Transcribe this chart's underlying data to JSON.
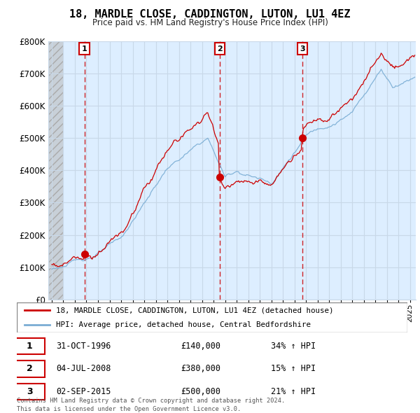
{
  "title": "18, MARDLE CLOSE, CADDINGTON, LUTON, LU1 4EZ",
  "subtitle": "Price paid vs. HM Land Registry's House Price Index (HPI)",
  "ylim": [
    0,
    800000
  ],
  "yticks": [
    0,
    100000,
    200000,
    300000,
    400000,
    500000,
    600000,
    700000,
    800000
  ],
  "ytick_labels": [
    "£0",
    "£100K",
    "£200K",
    "£300K",
    "£400K",
    "£500K",
    "£600K",
    "£700K",
    "£800K"
  ],
  "sale_dates": [
    1996.83,
    2008.54,
    2015.67
  ],
  "sale_prices": [
    140000,
    380000,
    500000
  ],
  "sale_labels": [
    "1",
    "2",
    "3"
  ],
  "sale_date_strs": [
    "31-OCT-1996",
    "04-JUL-2008",
    "02-SEP-2015"
  ],
  "sale_price_strs": [
    "£140,000",
    "£380,000",
    "£500,000"
  ],
  "sale_hpi_strs": [
    "34% ↑ HPI",
    "15% ↑ HPI",
    "21% ↑ HPI"
  ],
  "property_line_color": "#cc0000",
  "hpi_line_color": "#7aadd4",
  "legend_property_label": "18, MARDLE CLOSE, CADDINGTON, LUTON, LU1 4EZ (detached house)",
  "legend_hpi_label": "HPI: Average price, detached house, Central Bedfordshire",
  "footer": "Contains HM Land Registry data © Crown copyright and database right 2024.\nThis data is licensed under the Open Government Licence v3.0.",
  "grid_color": "#c8d8e8",
  "chart_bg_color": "#ddeeff",
  "background_color": "#ffffff",
  "hatch_end": 1995.0,
  "xmin": 1993.7,
  "xmax": 2025.5
}
